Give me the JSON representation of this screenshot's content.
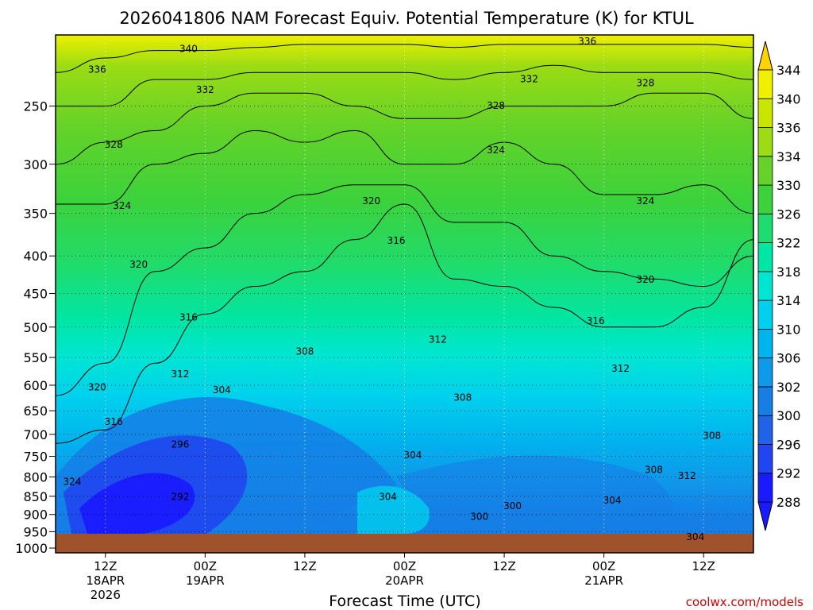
{
  "chart_data": {
    "type": "heatmap",
    "title": "2026041806 NAM Forecast Equiv. Potential Temperature (K) for KTUL",
    "xlabel": "Forecast Time (UTC)",
    "ylabel": "",
    "credit": "coolwx.com/models",
    "y_axis": {
      "scale": "pressure (log)",
      "range_hpa": [
        200,
        1015
      ],
      "ticks": [
        250,
        300,
        350,
        400,
        450,
        500,
        550,
        600,
        650,
        700,
        750,
        800,
        850,
        900,
        950,
        1000
      ],
      "tick_labels": [
        "250",
        "300",
        "350",
        "400",
        "450",
        "500",
        "550",
        "600",
        "650",
        "700",
        "750",
        "800",
        "850",
        "900",
        "950",
        "1000"
      ]
    },
    "x_axis": {
      "range_hours": [
        0,
        84
      ],
      "ticks": [
        {
          "hour": 6,
          "line1": "12Z",
          "line2": "18APR",
          "line3": "2026"
        },
        {
          "hour": 18,
          "line1": "00Z",
          "line2": "19APR",
          "line3": ""
        },
        {
          "hour": 30,
          "line1": "12Z",
          "line2": "",
          "line3": ""
        },
        {
          "hour": 42,
          "line1": "00Z",
          "line2": "20APR",
          "line3": ""
        },
        {
          "hour": 54,
          "line1": "12Z",
          "line2": "",
          "line3": ""
        },
        {
          "hour": 66,
          "line1": "00Z",
          "line2": "21APR",
          "line3": ""
        },
        {
          "hour": 78,
          "line1": "12Z",
          "line2": "",
          "line3": ""
        }
      ]
    },
    "colorbar": {
      "levels": [
        288,
        292,
        296,
        300,
        302,
        306,
        310,
        314,
        318,
        322,
        326,
        330,
        334,
        336,
        340,
        344
      ],
      "labels": [
        "288",
        "292",
        "296",
        "300",
        "302",
        "306",
        "310",
        "314",
        "318",
        "322",
        "326",
        "330",
        "334",
        "336",
        "340",
        "344"
      ],
      "colors": [
        "#1a1aff",
        "#1f46f0",
        "#1f64e6",
        "#157fe6",
        "#0f99ea",
        "#00b4ee",
        "#00d0ee",
        "#00e6d2",
        "#00e6a5",
        "#1edc6e",
        "#3cd23c",
        "#64d228",
        "#9bdc14",
        "#c8e600",
        "#eef000",
        "#ffd200"
      ],
      "under_color": "#1a1aff",
      "over_color": "#ffd200"
    },
    "series": [
      {
        "name": "316 K contour (hPa)",
        "x": [
          0,
          6,
          12,
          18,
          24,
          30,
          36,
          42,
          48,
          54,
          60,
          66,
          72,
          78,
          84
        ],
        "values": [
          720,
          690,
          560,
          480,
          440,
          420,
          380,
          340,
          430,
          440,
          470,
          500,
          500,
          470,
          380
        ]
      },
      {
        "name": "320 K contour (hPa)",
        "x": [
          0,
          6,
          12,
          18,
          24,
          30,
          36,
          42,
          48,
          54,
          60,
          66,
          72,
          78,
          84
        ],
        "values": [
          620,
          560,
          420,
          390,
          350,
          330,
          320,
          320,
          360,
          360,
          400,
          420,
          430,
          440,
          400
        ]
      },
      {
        "name": "324 K contour (hPa)",
        "x": [
          0,
          6,
          12,
          18,
          24,
          30,
          36,
          42,
          48,
          54,
          60,
          66,
          72,
          78,
          84
        ],
        "values": [
          340,
          340,
          300,
          290,
          270,
          280,
          270,
          300,
          300,
          280,
          300,
          330,
          330,
          320,
          350
        ]
      },
      {
        "name": "328 K contour (hPa)",
        "x": [
          0,
          6,
          12,
          18,
          24,
          30,
          36,
          42,
          48,
          54,
          60,
          66,
          72,
          78,
          84
        ],
        "values": [
          300,
          280,
          270,
          250,
          240,
          240,
          250,
          260,
          260,
          250,
          250,
          250,
          240,
          240,
          260
        ]
      },
      {
        "name": "332 K contour (hPa)",
        "x": [
          0,
          6,
          12,
          18,
          24,
          30,
          36,
          42,
          48,
          54,
          60,
          66,
          72,
          78,
          84
        ],
        "values": [
          250,
          250,
          230,
          230,
          225,
          225,
          225,
          225,
          230,
          225,
          220,
          225,
          225,
          225,
          230
        ]
      },
      {
        "name": "336 K contour (hPa)",
        "x": [
          0,
          6,
          12,
          18,
          24,
          30,
          36,
          42,
          48,
          54,
          60,
          66,
          72,
          78,
          84
        ],
        "values": [
          225,
          215,
          210,
          210,
          208,
          206,
          206,
          206,
          208,
          206,
          206,
          206,
          206,
          206,
          208
        ]
      }
    ],
    "contour_labels": [
      {
        "text": "340",
        "hour": 16,
        "hpa": 211
      },
      {
        "text": "336",
        "hour": 5,
        "hpa": 225
      },
      {
        "text": "336",
        "hour": 64,
        "hpa": 206
      },
      {
        "text": "332",
        "hour": 18,
        "hpa": 240
      },
      {
        "text": "332",
        "hour": 57,
        "hpa": 232
      },
      {
        "text": "328",
        "hour": 7,
        "hpa": 285
      },
      {
        "text": "328",
        "hour": 53,
        "hpa": 252
      },
      {
        "text": "328",
        "hour": 71,
        "hpa": 235
      },
      {
        "text": "324",
        "hour": 8,
        "hpa": 345
      },
      {
        "text": "324",
        "hour": 53,
        "hpa": 290
      },
      {
        "text": "324",
        "hour": 71,
        "hpa": 340
      },
      {
        "text": "320",
        "hour": 10,
        "hpa": 415
      },
      {
        "text": "320",
        "hour": 38,
        "hpa": 340
      },
      {
        "text": "320",
        "hour": 71,
        "hpa": 435
      },
      {
        "text": "316",
        "hour": 41,
        "hpa": 385
      },
      {
        "text": "316",
        "hour": 16,
        "hpa": 490
      },
      {
        "text": "316",
        "hour": 65,
        "hpa": 495
      },
      {
        "text": "316",
        "hour": 7,
        "hpa": 680
      },
      {
        "text": "312",
        "hour": 46,
        "hpa": 525
      },
      {
        "text": "312",
        "hour": 15,
        "hpa": 585
      },
      {
        "text": "312",
        "hour": 68,
        "hpa": 575
      },
      {
        "text": "312",
        "hour": 76,
        "hpa": 805
      },
      {
        "text": "308",
        "hour": 30,
        "hpa": 545
      },
      {
        "text": "308",
        "hour": 49,
        "hpa": 630
      },
      {
        "text": "308",
        "hour": 79,
        "hpa": 710
      },
      {
        "text": "308",
        "hour": 72,
        "hpa": 790
      },
      {
        "text": "304",
        "hour": 20,
        "hpa": 615
      },
      {
        "text": "304",
        "hour": 43,
        "hpa": 755
      },
      {
        "text": "304",
        "hour": 40,
        "hpa": 860
      },
      {
        "text": "304",
        "hour": 67,
        "hpa": 870
      },
      {
        "text": "304",
        "hour": 77,
        "hpa": 975
      },
      {
        "text": "300",
        "hour": 55,
        "hpa": 885
      },
      {
        "text": "300",
        "hour": 51,
        "hpa": 915
      },
      {
        "text": "296",
        "hour": 15,
        "hpa": 730
      },
      {
        "text": "292",
        "hour": 15,
        "hpa": 860
      },
      {
        "text": "320",
        "hour": 5,
        "hpa": 610
      },
      {
        "text": "324",
        "hour": 2,
        "hpa": 820
      }
    ],
    "ground_level_hpa": 1000
  }
}
